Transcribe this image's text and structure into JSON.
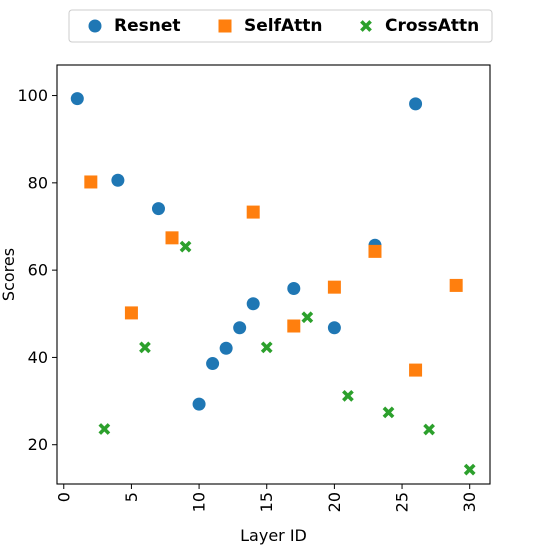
{
  "chart_data": {
    "type": "scatter",
    "title": "",
    "xlabel": "Layer ID",
    "ylabel": "Scores",
    "xlim": [
      -0.5,
      31.5
    ],
    "ylim": [
      11,
      107
    ],
    "xticks": [
      0,
      5,
      10,
      15,
      20,
      25,
      30
    ],
    "yticks": [
      20,
      40,
      60,
      80,
      100
    ],
    "grid": false,
    "legend_position": "top",
    "series": [
      {
        "name": "Resnet",
        "marker": "circle",
        "color": "#1f77b4",
        "points": [
          [
            1,
            99.3
          ],
          [
            4,
            80.6
          ],
          [
            7,
            74.1
          ],
          [
            10,
            29.3
          ],
          [
            11,
            38.6
          ],
          [
            12,
            42.1
          ],
          [
            13,
            46.8
          ],
          [
            14,
            52.3
          ],
          [
            17,
            55.8
          ],
          [
            20,
            46.8
          ],
          [
            23,
            65.7
          ],
          [
            26,
            98.1
          ]
        ]
      },
      {
        "name": "SelfAttn",
        "marker": "square",
        "color": "#ff7f0e",
        "points": [
          [
            2,
            80.2
          ],
          [
            5,
            50.2
          ],
          [
            8,
            67.4
          ],
          [
            14,
            73.3
          ],
          [
            17,
            47.2
          ],
          [
            20,
            56.1
          ],
          [
            23,
            64.3
          ],
          [
            26,
            37.1
          ],
          [
            29,
            56.5
          ]
        ]
      },
      {
        "name": "CrossAttn",
        "marker": "x",
        "color": "#2ca02c",
        "points": [
          [
            3,
            23.6
          ],
          [
            6,
            42.3
          ],
          [
            9,
            65.4
          ],
          [
            15,
            42.3
          ],
          [
            18,
            49.2
          ],
          [
            21,
            31.2
          ],
          [
            24,
            27.4
          ],
          [
            27,
            23.5
          ],
          [
            30,
            14.3
          ]
        ]
      }
    ]
  }
}
